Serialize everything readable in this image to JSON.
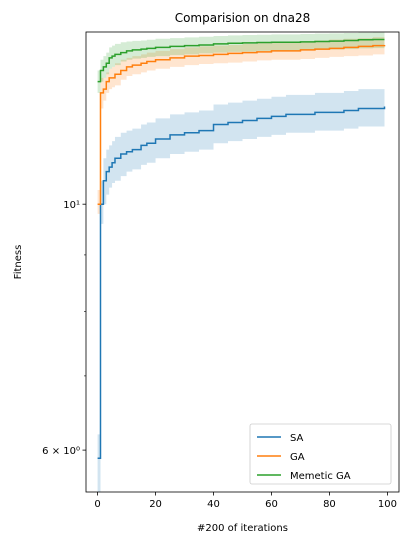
{
  "chart_data": {
    "type": "line",
    "title": "Comparision on dna28",
    "xlabel": "#200 of iterations",
    "ylabel": "Fitness",
    "yscale": "log",
    "xlim": [
      -4,
      104
    ],
    "ylim": [
      5.5,
      14.3
    ],
    "xticks": [
      0,
      20,
      40,
      60,
      80,
      100
    ],
    "xtick_labels": [
      "0",
      "20",
      "40",
      "60",
      "80",
      "100"
    ],
    "yticks_major": [
      6,
      10
    ],
    "ytick_major_labels": [
      "6 × 10⁰",
      "10¹"
    ],
    "yticks_minor": [
      7,
      8,
      9
    ],
    "grid": false,
    "legend_position": "bottom-right",
    "series": [
      {
        "name": "SA",
        "color": "#1f77b4",
        "band": "±1 std",
        "x": [
          0,
          1,
          2,
          3,
          4,
          5,
          6,
          8,
          10,
          12,
          15,
          17,
          20,
          25,
          30,
          35,
          40,
          45,
          50,
          55,
          60,
          65,
          70,
          75,
          80,
          85,
          90,
          95,
          99
        ],
        "values": [
          5.9,
          10.0,
          10.5,
          10.7,
          10.8,
          10.9,
          11.0,
          11.1,
          11.15,
          11.2,
          11.3,
          11.35,
          11.45,
          11.55,
          11.6,
          11.65,
          11.8,
          11.85,
          11.9,
          11.95,
          12.0,
          12.05,
          12.05,
          12.1,
          12.1,
          12.15,
          12.2,
          12.2,
          12.25
        ],
        "lower": [
          5.5,
          9.6,
          10.0,
          10.2,
          10.35,
          10.45,
          10.5,
          10.6,
          10.7,
          10.75,
          10.85,
          10.9,
          11.0,
          11.1,
          11.15,
          11.2,
          11.35,
          11.4,
          11.45,
          11.5,
          11.55,
          11.6,
          11.6,
          11.65,
          11.65,
          11.7,
          11.75,
          11.75,
          11.8
        ],
        "upper": [
          6.2,
          10.5,
          11.0,
          11.2,
          11.3,
          11.4,
          11.5,
          11.6,
          11.65,
          11.7,
          11.8,
          11.85,
          11.95,
          12.05,
          12.1,
          12.15,
          12.3,
          12.35,
          12.4,
          12.45,
          12.5,
          12.55,
          12.55,
          12.6,
          12.6,
          12.65,
          12.7,
          12.7,
          12.75
        ]
      },
      {
        "name": "GA",
        "color": "#ff7f0e",
        "band": "±1 std",
        "x": [
          0,
          1,
          2,
          3,
          4,
          5,
          6,
          8,
          10,
          12,
          15,
          17,
          20,
          25,
          30,
          35,
          40,
          45,
          50,
          55,
          60,
          65,
          70,
          75,
          80,
          85,
          90,
          95,
          99
        ],
        "values": [
          10.0,
          12.6,
          12.7,
          12.9,
          13.0,
          13.0,
          13.1,
          13.2,
          13.3,
          13.35,
          13.4,
          13.45,
          13.5,
          13.55,
          13.6,
          13.62,
          13.65,
          13.68,
          13.7,
          13.72,
          13.75,
          13.75,
          13.78,
          13.8,
          13.82,
          13.85,
          13.88,
          13.9,
          13.92
        ],
        "lower": [
          9.8,
          12.2,
          12.4,
          12.6,
          12.7,
          12.75,
          12.8,
          12.95,
          13.05,
          13.1,
          13.15,
          13.2,
          13.25,
          13.3,
          13.35,
          13.38,
          13.4,
          13.42,
          13.45,
          13.48,
          13.5,
          13.5,
          13.52,
          13.55,
          13.58,
          13.6,
          13.62,
          13.65,
          13.68
        ],
        "upper": [
          10.3,
          13.0,
          13.0,
          13.15,
          13.25,
          13.3,
          13.4,
          13.5,
          13.55,
          13.6,
          13.65,
          13.7,
          13.75,
          13.8,
          13.85,
          13.88,
          13.9,
          13.92,
          13.95,
          13.98,
          14.0,
          14.0,
          14.02,
          14.05,
          14.08,
          14.1,
          14.12,
          14.15,
          14.18
        ]
      },
      {
        "name": "Memetic GA",
        "color": "#2ca02c",
        "band": "±1 std",
        "x": [
          0,
          1,
          2,
          3,
          4,
          5,
          6,
          8,
          10,
          12,
          15,
          17,
          20,
          25,
          30,
          35,
          40,
          45,
          50,
          55,
          60,
          65,
          70,
          75,
          80,
          85,
          90,
          95,
          99
        ],
        "values": [
          12.9,
          13.2,
          13.3,
          13.4,
          13.55,
          13.6,
          13.65,
          13.7,
          13.75,
          13.78,
          13.8,
          13.82,
          13.85,
          13.88,
          13.9,
          13.92,
          13.95,
          13.97,
          13.98,
          13.99,
          14.0,
          14.0,
          14.01,
          14.02,
          14.03,
          14.05,
          14.07,
          14.08,
          14.08
        ],
        "lower": [
          12.6,
          12.9,
          13.0,
          13.1,
          13.25,
          13.3,
          13.35,
          13.45,
          13.5,
          13.53,
          13.55,
          13.58,
          13.6,
          13.63,
          13.65,
          13.68,
          13.7,
          13.72,
          13.73,
          13.75,
          13.76,
          13.76,
          13.77,
          13.78,
          13.79,
          13.8,
          13.82,
          13.83,
          13.84
        ],
        "upper": [
          13.2,
          13.5,
          13.6,
          13.7,
          13.85,
          13.9,
          13.95,
          14.0,
          14.02,
          14.04,
          14.05,
          14.07,
          14.1,
          14.12,
          14.14,
          14.16,
          14.18,
          14.2,
          14.21,
          14.22,
          14.23,
          14.23,
          14.24,
          14.25,
          14.26,
          14.27,
          14.28,
          14.29,
          14.3
        ]
      }
    ]
  }
}
